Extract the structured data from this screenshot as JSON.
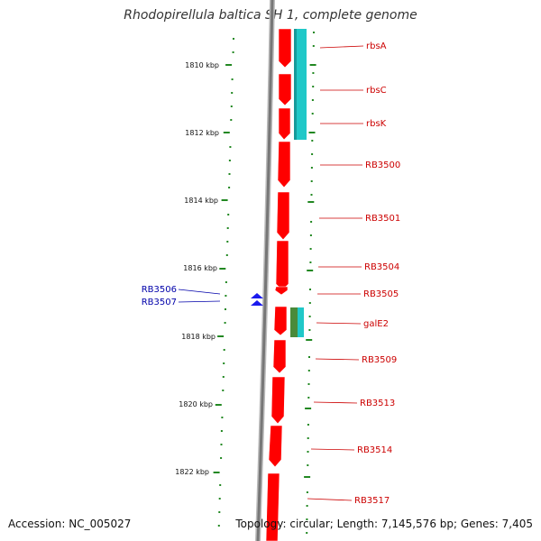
{
  "map": {
    "title": "Rhodopirellula baltica SH 1, complete genome",
    "accession": "Accession: NC_005027",
    "topology": "Topology: circular; Length: 7,145,576 bp; Genes: 7,405",
    "kbp_labels": [
      "1810 kbp",
      "1812 kbp",
      "1814 kbp",
      "1816 kbp",
      "1818 kbp",
      "1820 kbp",
      "1822 kbp"
    ],
    "gene_labels_right": [
      "rbsA",
      "rbsC",
      "rbsK",
      "RB3500",
      "RB3501",
      "RB3504",
      "RB3505",
      "galE2",
      "RB3509",
      "RB3513",
      "RB3514",
      "RB3517"
    ],
    "gene_labels_left": [
      "RB3506",
      "RB3507"
    ],
    "colors": {
      "gene_forward": "#ff0000",
      "highlight_cyan": "#20c8c8",
      "backbone": "#888888",
      "ticks": "#228822",
      "label_red": "#cc0000",
      "label_blue": "#0000aa"
    }
  }
}
